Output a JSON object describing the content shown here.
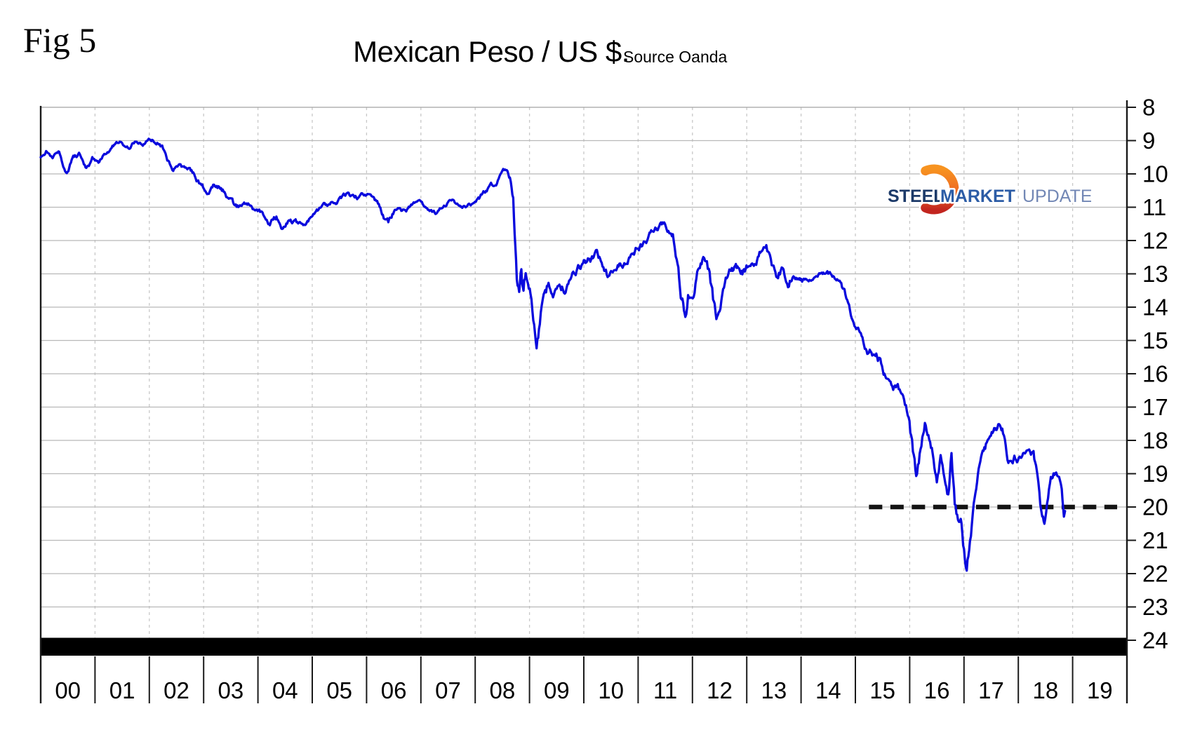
{
  "fig_label": "Fig 5",
  "title": "Mexican Peso / US $.",
  "source": "Source Oanda",
  "logo": {
    "word1": "STEEL",
    "word2": "MARKET",
    "word3": "UPDATE",
    "navy": "#1c3a69",
    "blue": "#2c5ca6",
    "slate": "#7287b5",
    "grad_top": "#f79320",
    "grad_mid": "#ee6b23",
    "grad_bottom": "#c2251f"
  },
  "chart_data": {
    "type": "line",
    "title": "Mexican Peso / US $.",
    "source": "Source Oanda",
    "x_tick_labels": [
      "00",
      "01",
      "02",
      "03",
      "04",
      "05",
      "06",
      "07",
      "08",
      "09",
      "10",
      "11",
      "12",
      "13",
      "14",
      "15",
      "16",
      "17",
      "18",
      "19"
    ],
    "x_range_years": [
      2000,
      2020
    ],
    "y_ticks": [
      8,
      9,
      10,
      11,
      12,
      13,
      14,
      15,
      16,
      17,
      18,
      19,
      20,
      21,
      22,
      23,
      24
    ],
    "ylim": [
      8,
      24
    ],
    "y_axis_side": "right",
    "y_inverted": true,
    "grid": {
      "horizontal": "solid",
      "vertical": "dashed"
    },
    "line_color": "#0a0add",
    "grid_color": "#b8b8b8",
    "vgrid_color": "#c8c8c8",
    "axis_color": "#1a1a1a",
    "bottom_bar_color": "#000000",
    "reference_line": {
      "value": 20,
      "style": "dashed",
      "color": "#141414",
      "from_year": 2015.25,
      "to_year": 2019.82
    },
    "noise": {
      "seed": 11,
      "steps_per_year": 64,
      "persistence": 0.82,
      "scale": 2.1
    },
    "series": [
      {
        "name": "Mexican Peso per US Dollar",
        "anchors": [
          [
            2000.0,
            9.5,
            0.05
          ],
          [
            2000.1,
            9.32,
            0.05
          ],
          [
            2000.22,
            9.48,
            0.05
          ],
          [
            2000.34,
            9.38,
            0.05
          ],
          [
            2000.48,
            10.02,
            0.05
          ],
          [
            2000.6,
            9.45,
            0.05
          ],
          [
            2000.72,
            9.42,
            0.05
          ],
          [
            2000.84,
            9.88,
            0.05
          ],
          [
            2000.95,
            9.55,
            0.05
          ],
          [
            2001.08,
            9.66,
            0.05
          ],
          [
            2001.2,
            9.38,
            0.04
          ],
          [
            2001.35,
            9.14,
            0.04
          ],
          [
            2001.5,
            9.06,
            0.04
          ],
          [
            2001.62,
            9.22,
            0.04
          ],
          [
            2001.75,
            8.98,
            0.04
          ],
          [
            2001.88,
            9.14,
            0.04
          ],
          [
            2002.02,
            8.96,
            0.04
          ],
          [
            2002.16,
            9.1,
            0.05
          ],
          [
            2002.3,
            9.34,
            0.05
          ],
          [
            2002.44,
            9.96,
            0.05
          ],
          [
            2002.56,
            9.74,
            0.05
          ],
          [
            2002.7,
            9.86,
            0.05
          ],
          [
            2002.84,
            10.06,
            0.06
          ],
          [
            2002.96,
            10.42,
            0.06
          ],
          [
            2003.08,
            10.56,
            0.06
          ],
          [
            2003.24,
            10.32,
            0.06
          ],
          [
            2003.4,
            10.52,
            0.06
          ],
          [
            2003.56,
            10.95,
            0.06
          ],
          [
            2003.7,
            11.02,
            0.05
          ],
          [
            2003.82,
            10.88,
            0.05
          ],
          [
            2003.95,
            11.1,
            0.05
          ],
          [
            2004.1,
            11.28,
            0.06
          ],
          [
            2004.22,
            11.48,
            0.06
          ],
          [
            2004.34,
            11.28,
            0.06
          ],
          [
            2004.46,
            11.6,
            0.06
          ],
          [
            2004.6,
            11.38,
            0.06
          ],
          [
            2004.74,
            11.52,
            0.05
          ],
          [
            2004.88,
            11.45,
            0.05
          ],
          [
            2005.02,
            11.22,
            0.05
          ],
          [
            2005.18,
            11.02,
            0.05
          ],
          [
            2005.34,
            10.92,
            0.05
          ],
          [
            2005.5,
            10.78,
            0.05
          ],
          [
            2005.64,
            10.65,
            0.05
          ],
          [
            2005.78,
            10.82,
            0.05
          ],
          [
            2005.92,
            10.7,
            0.05
          ],
          [
            2006.06,
            10.58,
            0.05
          ],
          [
            2006.18,
            10.78,
            0.06
          ],
          [
            2006.3,
            11.25,
            0.07
          ],
          [
            2006.4,
            11.48,
            0.07
          ],
          [
            2006.52,
            11.05,
            0.06
          ],
          [
            2006.64,
            11.22,
            0.06
          ],
          [
            2006.76,
            11.05,
            0.05
          ],
          [
            2006.88,
            10.92,
            0.05
          ],
          [
            2007.02,
            10.95,
            0.04
          ],
          [
            2007.16,
            11.08,
            0.04
          ],
          [
            2007.3,
            11.2,
            0.04
          ],
          [
            2007.44,
            10.95,
            0.04
          ],
          [
            2007.56,
            10.75,
            0.04
          ],
          [
            2007.7,
            10.95,
            0.04
          ],
          [
            2007.84,
            10.98,
            0.04
          ],
          [
            2007.98,
            10.88,
            0.04
          ],
          [
            2008.12,
            10.68,
            0.05
          ],
          [
            2008.26,
            10.48,
            0.05
          ],
          [
            2008.4,
            10.28,
            0.05
          ],
          [
            2008.5,
            9.99,
            0.05
          ],
          [
            2008.58,
            9.86,
            0.05
          ],
          [
            2008.64,
            10.18,
            0.08
          ],
          [
            2008.7,
            10.7,
            0.12
          ],
          [
            2008.74,
            12.3,
            0.2
          ],
          [
            2008.78,
            13.35,
            0.22
          ],
          [
            2008.81,
            13.78,
            0.22
          ],
          [
            2008.85,
            12.95,
            0.22
          ],
          [
            2008.89,
            13.5,
            0.22
          ],
          [
            2008.93,
            13.05,
            0.2
          ],
          [
            2008.97,
            13.72,
            0.2
          ],
          [
            2009.02,
            13.9,
            0.2
          ],
          [
            2009.07,
            14.35,
            0.18
          ],
          [
            2009.13,
            15.42,
            0.15
          ],
          [
            2009.19,
            14.65,
            0.16
          ],
          [
            2009.26,
            13.65,
            0.15
          ],
          [
            2009.35,
            13.25,
            0.13
          ],
          [
            2009.45,
            13.62,
            0.12
          ],
          [
            2009.55,
            13.3,
            0.11
          ],
          [
            2009.65,
            13.5,
            0.11
          ],
          [
            2009.76,
            13.25,
            0.1
          ],
          [
            2009.88,
            12.95,
            0.09
          ],
          [
            2010.0,
            12.72,
            0.09
          ],
          [
            2010.12,
            12.58,
            0.09
          ],
          [
            2010.24,
            12.35,
            0.09
          ],
          [
            2010.36,
            12.68,
            0.09
          ],
          [
            2010.47,
            13.12,
            0.09
          ],
          [
            2010.58,
            12.88,
            0.09
          ],
          [
            2010.7,
            12.68,
            0.08
          ],
          [
            2010.82,
            12.48,
            0.08
          ],
          [
            2010.94,
            12.3,
            0.08
          ],
          [
            2011.06,
            12.12,
            0.08
          ],
          [
            2011.18,
            11.92,
            0.07
          ],
          [
            2011.3,
            11.68,
            0.07
          ],
          [
            2011.42,
            11.52,
            0.07
          ],
          [
            2011.54,
            11.62,
            0.07
          ],
          [
            2011.64,
            11.78,
            0.08
          ],
          [
            2011.71,
            12.5,
            0.14
          ],
          [
            2011.77,
            13.45,
            0.17
          ],
          [
            2011.83,
            13.95,
            0.17
          ],
          [
            2011.87,
            14.18,
            0.16
          ],
          [
            2011.92,
            13.62,
            0.15
          ],
          [
            2011.97,
            13.88,
            0.15
          ],
          [
            2012.04,
            13.72,
            0.14
          ],
          [
            2012.12,
            12.95,
            0.13
          ],
          [
            2012.2,
            12.72,
            0.12
          ],
          [
            2012.3,
            13.05,
            0.12
          ],
          [
            2012.38,
            13.85,
            0.14
          ],
          [
            2012.44,
            14.35,
            0.14
          ],
          [
            2012.5,
            13.85,
            0.13
          ],
          [
            2012.58,
            13.28,
            0.12
          ],
          [
            2012.68,
            13.02,
            0.1
          ],
          [
            2012.8,
            12.88,
            0.09
          ],
          [
            2012.92,
            12.95,
            0.09
          ],
          [
            2013.04,
            12.78,
            0.08
          ],
          [
            2013.16,
            12.58,
            0.08
          ],
          [
            2013.28,
            12.25,
            0.08
          ],
          [
            2013.36,
            12.02,
            0.08
          ],
          [
            2013.46,
            12.78,
            0.1
          ],
          [
            2013.56,
            13.05,
            0.1
          ],
          [
            2013.66,
            12.82,
            0.09
          ],
          [
            2013.76,
            13.22,
            0.09
          ],
          [
            2013.86,
            12.92,
            0.08
          ],
          [
            2013.96,
            13.08,
            0.07
          ],
          [
            2014.08,
            13.22,
            0.06
          ],
          [
            2014.2,
            13.05,
            0.06
          ],
          [
            2014.32,
            12.98,
            0.06
          ],
          [
            2014.44,
            12.95,
            0.06
          ],
          [
            2014.56,
            13.02,
            0.06
          ],
          [
            2014.68,
            13.15,
            0.06
          ],
          [
            2014.8,
            13.5,
            0.08
          ],
          [
            2014.9,
            14.05,
            0.09
          ],
          [
            2015.0,
            14.68,
            0.09
          ],
          [
            2015.1,
            14.92,
            0.09
          ],
          [
            2015.22,
            15.22,
            0.09
          ],
          [
            2015.34,
            15.42,
            0.09
          ],
          [
            2015.46,
            15.62,
            0.1
          ],
          [
            2015.58,
            16.22,
            0.1
          ],
          [
            2015.68,
            16.65,
            0.1
          ],
          [
            2015.78,
            16.5,
            0.1
          ],
          [
            2015.88,
            16.72,
            0.1
          ],
          [
            2015.98,
            17.15,
            0.11
          ],
          [
            2016.06,
            18.35,
            0.13
          ],
          [
            2016.12,
            19.02,
            0.13
          ],
          [
            2016.2,
            18.2,
            0.13
          ],
          [
            2016.28,
            17.32,
            0.12
          ],
          [
            2016.36,
            17.85,
            0.12
          ],
          [
            2016.44,
            18.42,
            0.12
          ],
          [
            2016.5,
            19.05,
            0.13
          ],
          [
            2016.57,
            18.35,
            0.13
          ],
          [
            2016.64,
            19.25,
            0.13
          ],
          [
            2016.71,
            19.78,
            0.13
          ],
          [
            2016.77,
            18.62,
            0.13
          ],
          [
            2016.83,
            20.15,
            0.14
          ],
          [
            2016.89,
            20.62,
            0.14
          ],
          [
            2016.94,
            20.35,
            0.13
          ],
          [
            2017.0,
            21.25,
            0.13
          ],
          [
            2017.05,
            21.88,
            0.12
          ],
          [
            2017.11,
            20.95,
            0.12
          ],
          [
            2017.18,
            19.95,
            0.12
          ],
          [
            2017.27,
            18.98,
            0.11
          ],
          [
            2017.36,
            18.35,
            0.1
          ],
          [
            2017.45,
            17.95,
            0.09
          ],
          [
            2017.54,
            17.62,
            0.09
          ],
          [
            2017.63,
            17.52,
            0.09
          ],
          [
            2017.72,
            17.78,
            0.1
          ],
          [
            2017.8,
            18.52,
            0.11
          ],
          [
            2017.88,
            18.85,
            0.1
          ],
          [
            2017.96,
            18.62,
            0.1
          ],
          [
            2018.04,
            18.42,
            0.1
          ],
          [
            2018.12,
            18.25,
            0.09
          ],
          [
            2018.2,
            17.98,
            0.09
          ],
          [
            2018.28,
            18.35,
            0.1
          ],
          [
            2018.37,
            19.35,
            0.12
          ],
          [
            2018.44,
            20.35,
            0.12
          ],
          [
            2018.48,
            20.68,
            0.11
          ],
          [
            2018.53,
            19.85,
            0.11
          ],
          [
            2018.6,
            19.12,
            0.1
          ],
          [
            2018.68,
            18.95,
            0.09
          ],
          [
            2018.75,
            19.15,
            0.09
          ],
          [
            2018.8,
            19.6,
            0.08
          ],
          [
            2018.84,
            20.32,
            0.06
          ],
          [
            2018.86,
            20.12,
            0.04
          ]
        ]
      }
    ]
  }
}
